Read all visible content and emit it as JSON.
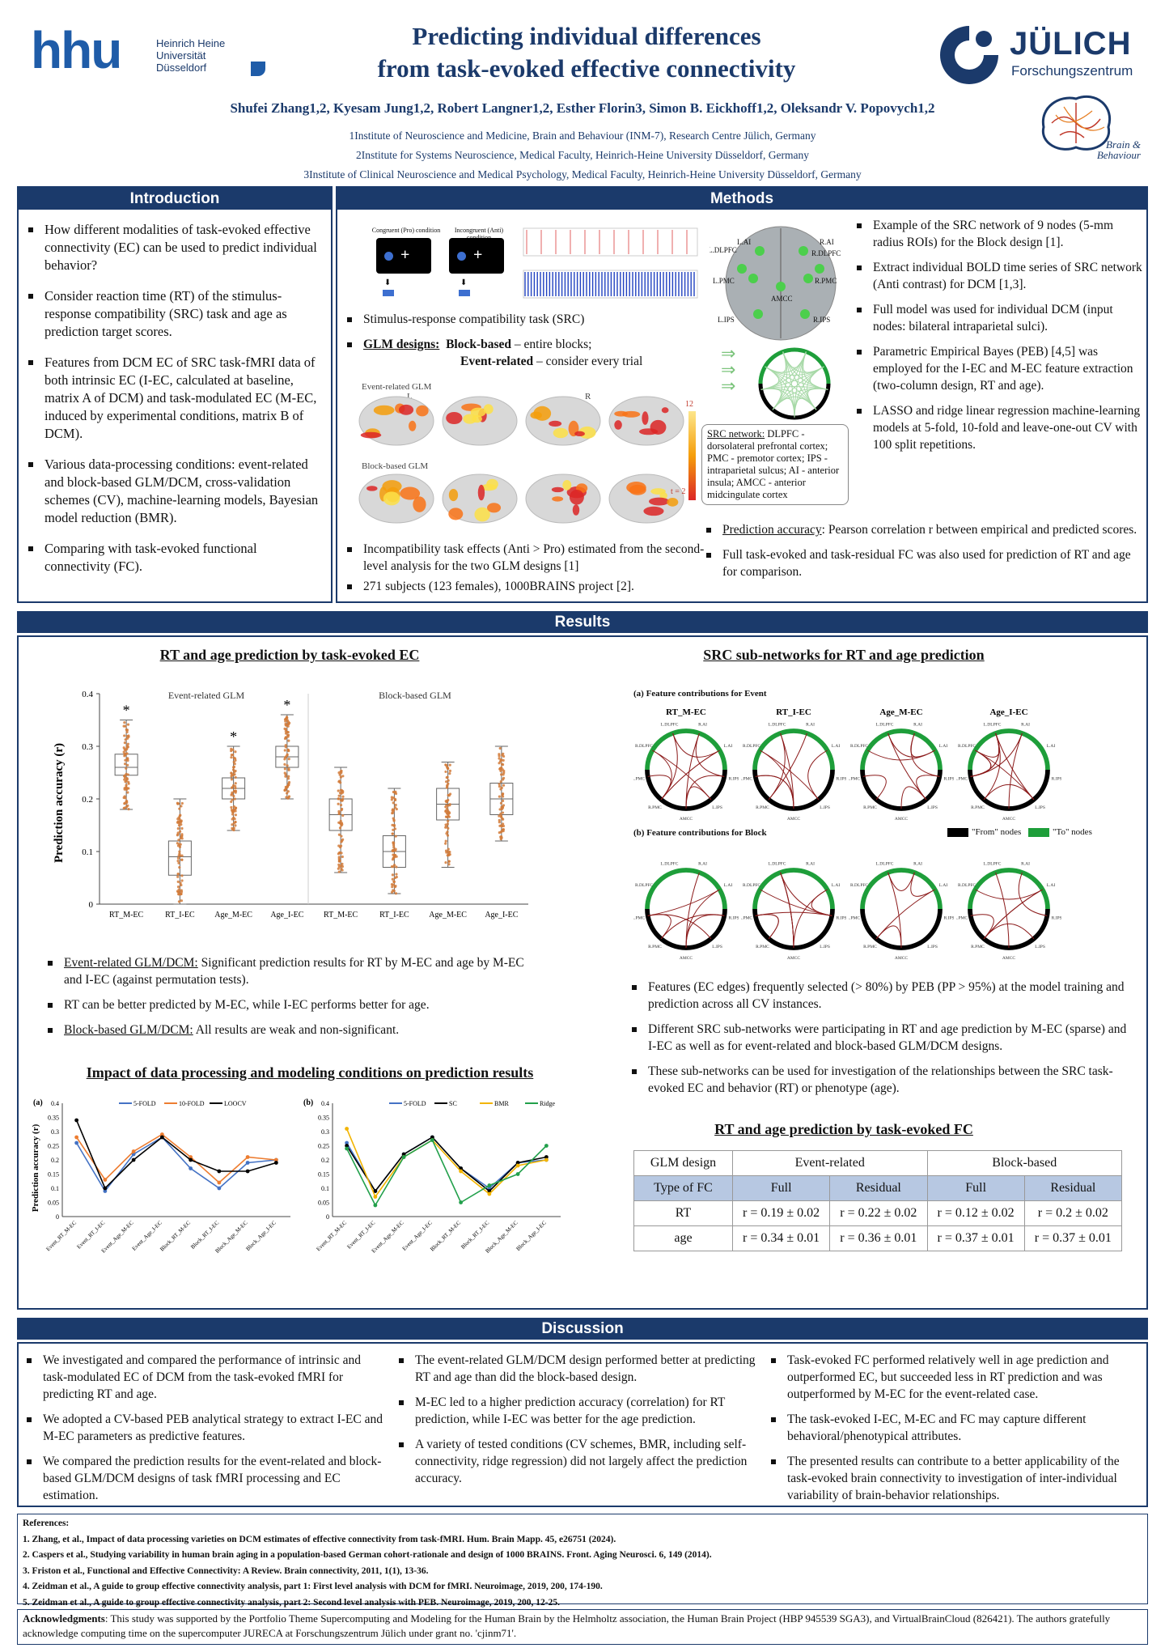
{
  "header": {
    "hhu_mark": "hhu",
    "hhu_name_lines": [
      "Heinrich Heine",
      "Universität",
      "Düsseldorf"
    ],
    "title_line1": "Predicting individual differences",
    "title_line2": "from task-evoked effective connectivity",
    "julich_name": "JÜLICH",
    "julich_sub": "Forschungszentrum",
    "bb_text1": "Brain &",
    "bb_text2": "Behaviour",
    "authors": "Shufei Zhang1,2, Kyesam Jung1,2, Robert Langner1,2, Esther Florin3, Simon B. Eickhoff1,2, Oleksandr V. Popovych1,2",
    "aff1": "1Institute of Neuroscience and Medicine, Brain and Behaviour (INM-7), Research Centre Jülich, Germany",
    "aff2": "2Institute for Systems Neuroscience, Medical Faculty, Heinrich-Heine University Düsseldorf, Germany",
    "aff3": "3Institute of Clinical Neuroscience and Medical Psychology, Medical Faculty, Heinrich-Heine University Düsseldorf, Germany"
  },
  "intro": {
    "heading": "Introduction",
    "items": [
      "How different modalities of task-evoked effective connectivity (EC) can be used to predict individual behavior?",
      "Consider reaction time (RT) of the stimulus-response compatibility (SRC) task and age as prediction target scores.",
      "Features from DCM EC of SRC task-fMRI data of both intrinsic EC (I-EC, calculated at baseline, matrix A of DCM) and task-modulated EC (M-EC, induced by experimental conditions, matrix B of DCM).",
      "Various data-processing conditions: event-related and block-based GLM/DCM, cross-validation schemes (CV), machine-learning models, Bayesian model reduction (BMR).",
      "Comparing with task-evoked functional connectivity (FC)."
    ]
  },
  "methods": {
    "heading": "Methods",
    "task_label_1": "Congruent (Pro) condition",
    "task_label_2": "Incongruent (Anti) condition",
    "src_bullet": "Stimulus-response compatibility task (SRC)",
    "glm_label": "GLM designs:",
    "glm_block": "Block-based",
    "glm_block_desc": "– entire blocks;",
    "glm_event": "Event-related",
    "glm_event_desc": "– consider every trial",
    "event_glm": "Event-related GLM",
    "block_glm": "Block-based GLM",
    "hemi_l": "L",
    "hemi_r": "R",
    "colorbar_max": "12",
    "colorbar_min": "t = 2",
    "effects_bullet": "Incompatibility task effects (Anti > Pro) estimated from the second-level analysis for the two GLM designs [1]",
    "subjects_bullet": "271 subjects (123 females), 1000BRAINS project [2].",
    "brain_labels": [
      "L.DLPFC",
      "R.DLPFC",
      "L.PMC",
      "R.PMC",
      "AMCC",
      "L.IPS",
      "R.IPS",
      "L.AI",
      "R.AI"
    ],
    "src_network_title": "SRC network:",
    "src_network_text": "DLPFC - dorsolateral prefrontal cortex; PMC - premotor cortex; IPS - intraparietal sulcus; AI - anterior insula; AMCC - anterior midcingulate cortex",
    "right_items": [
      "Example of the SRC network of 9 nodes (5-mm radius ROIs) for the Block design [1].",
      "Extract individual BOLD time series of SRC network (Anti contrast) for DCM [1,3].",
      "Full model was used for individual DCM (input nodes: bilateral intraparietal sulci).",
      "Parametric Empirical Bayes (PEB) [4,5] was employed for the I-EC and M-EC feature extraction (two-column design, RT and age).",
      "LASSO and ridge linear regression machine-learning models at 5-fold, 10-fold and leave-one-out CV with 100 split repetitions."
    ],
    "accuracy_label": "Prediction accuracy",
    "accuracy_text": ": Pearson correlation r between empirical and predicted scores.",
    "fc_item": "Full task-evoked and task-residual FC was also used for prediction of RT and age for comparison."
  },
  "results": {
    "heading": "Results",
    "box_title": "RT and age prediction by task-evoked EC",
    "box_ylabel": "Prediction accuracy (r)",
    "box_event": "Event-related GLM",
    "box_block": "Block-based GLM",
    "box_yticks": [
      "0",
      "0.1",
      "0.2",
      "0.3",
      "0.4"
    ],
    "box_star": "*",
    "box_categories": [
      "RT_M-EC",
      "RT_I-EC",
      "Age_M-EC",
      "Age_I-EC",
      "RT_M-EC",
      "RT_I-EC",
      "Age_M-EC",
      "Age_I-EC"
    ],
    "left_bullets": [
      {
        "u": "Event-related GLM/DCM:",
        "t": " Significant prediction results for RT by M-EC and age by M-EC and I-EC (against permutation tests)."
      },
      {
        "u": "",
        "t": "RT can be better predicted by M-EC, while I-EC performs better for age."
      },
      {
        "u": "Block-based GLM/DCM:",
        "t": " All results are weak and non-significant."
      }
    ],
    "impact_title": "Impact of data processing and modeling conditions on prediction results",
    "panel_a": "(a)",
    "panel_b": "(b)",
    "line_yticks": [
      "0",
      "0.05",
      "0.1",
      "0.15",
      "0.2",
      "0.25",
      "0.3",
      "0.35",
      "0.4"
    ],
    "line_categories": [
      "Event_RT_M-EC",
      "Event_RT_I-EC",
      "Event_Age_M-EC",
      "Event_Age_I-EC",
      "Block_RT_M-EC",
      "Block_RT_I-EC",
      "Block_Age_M-EC",
      "Block_Age_I-EC"
    ],
    "sub_title": "SRC sub-networks for RT and age prediction",
    "sub_a": "(a) Feature contributions for Event",
    "sub_b": "(b) Feature contributions for Block",
    "sub_cols": [
      "RT_M-EC",
      "RT_I-EC",
      "Age_M-EC",
      "Age_I-EC"
    ],
    "legend_from": "\"From\" nodes",
    "legend_to": "\"To\" nodes",
    "node_labels": [
      "L.DLPFC",
      "R.DLPFC",
      "L.PMC",
      "R.PMC",
      "AMCC",
      "L.IPS",
      "R.IPS",
      "L.AI",
      "R.AI"
    ],
    "right_bullets": [
      "Features (EC edges) frequently selected (> 80%) by PEB (PP > 95%) at the model training and prediction across all CV instances.",
      "Different SRC sub-networks were participating in RT and age prediction by M-EC (sparse) and I-EC as well as for event-related and block-based GLM/DCM designs.",
      "These sub-networks can be used for investigation of the relationships between the SRC task-evoked EC and behavior (RT) or phenotype (age)."
    ],
    "fc_title": "RT and age prediction by task-evoked FC",
    "fc_table": {
      "h1": [
        "GLM design",
        "Event-related",
        "Block-based"
      ],
      "h2": [
        "Type of FC",
        "Full",
        "Residual",
        "Full",
        "Residual"
      ],
      "rows": [
        [
          "RT",
          "r = 0.19 ± 0.02",
          "r = 0.22 ± 0.02",
          "r = 0.12 ± 0.02",
          "r = 0.2 ± 0.02"
        ],
        [
          "age",
          "r = 0.34 ± 0.01",
          "r = 0.36 ± 0.01",
          "r = 0.37 ± 0.01",
          "r = 0.37 ± 0.01"
        ]
      ]
    }
  },
  "chart_data": [
    {
      "type": "box",
      "title": "RT and age prediction by task-evoked EC",
      "ylabel": "Prediction accuracy (r)",
      "ylim": [
        0,
        0.4
      ],
      "categories": [
        "RT_M-EC",
        "RT_I-EC",
        "Age_M-EC",
        "Age_I-EC",
        "RT_M-EC",
        "RT_I-EC",
        "Age_M-EC",
        "Age_I-EC"
      ],
      "groups": [
        "Event-related GLM",
        "Event-related GLM",
        "Event-related GLM",
        "Event-related GLM",
        "Block-based GLM",
        "Block-based GLM",
        "Block-based GLM",
        "Block-based GLM"
      ],
      "median": [
        0.26,
        0.09,
        0.22,
        0.28,
        0.17,
        0.1,
        0.19,
        0.2
      ],
      "q1": [
        0.245,
        0.055,
        0.2,
        0.26,
        0.14,
        0.07,
        0.16,
        0.17
      ],
      "q3": [
        0.285,
        0.12,
        0.24,
        0.3,
        0.2,
        0.13,
        0.22,
        0.23
      ],
      "whisker_low": [
        0.18,
        0.0,
        0.14,
        0.2,
        0.06,
        0.02,
        0.07,
        0.12
      ],
      "whisker_high": [
        0.35,
        0.2,
        0.3,
        0.36,
        0.26,
        0.22,
        0.27,
        0.3
      ],
      "significant": [
        true,
        false,
        true,
        true,
        false,
        false,
        false,
        false
      ]
    },
    {
      "type": "line",
      "panel": "(a)",
      "ylabel": "Prediction accuracy (r)",
      "ylim": [
        0,
        0.4
      ],
      "categories": [
        "Event_RT_M-EC",
        "Event_RT_I-EC",
        "Event_Age_M-EC",
        "Event_Age_I-EC",
        "Block_RT_M-EC",
        "Block_RT_I-EC",
        "Block_Age_M-EC",
        "Block_Age_I-EC"
      ],
      "series": [
        {
          "name": "5-FOLD",
          "color": "#4472c4",
          "values": [
            0.26,
            0.09,
            0.22,
            0.28,
            0.17,
            0.1,
            0.19,
            0.2
          ]
        },
        {
          "name": "10-FOLD",
          "color": "#ed7d31",
          "values": [
            0.28,
            0.13,
            0.23,
            0.29,
            0.21,
            0.12,
            0.21,
            0.2
          ]
        },
        {
          "name": "LOOCV",
          "color": "#000000",
          "values": [
            0.34,
            0.1,
            0.2,
            0.28,
            0.2,
            0.16,
            0.16,
            0.19
          ]
        }
      ]
    },
    {
      "type": "line",
      "panel": "(b)",
      "ylim": [
        0,
        0.4
      ],
      "categories": [
        "Event_RT_M-EC",
        "Event_RT_I-EC",
        "Event_Age_M-EC",
        "Event_Age_I-EC",
        "Block_RT_M-EC",
        "Block_RT_I-EC",
        "Block_Age_M-EC",
        "Block_Age_I-EC"
      ],
      "series": [
        {
          "name": "5-FOLD",
          "color": "#4472c4",
          "values": [
            0.26,
            0.09,
            0.22,
            0.28,
            0.17,
            0.1,
            0.19,
            0.2
          ]
        },
        {
          "name": "SC",
          "color": "#000000",
          "values": [
            0.25,
            0.09,
            0.22,
            0.28,
            0.17,
            0.09,
            0.19,
            0.21
          ]
        },
        {
          "name": "BMR",
          "color": "#f2b400",
          "values": [
            0.31,
            0.07,
            0.21,
            0.27,
            0.16,
            0.08,
            0.18,
            0.2
          ]
        },
        {
          "name": "Ridge",
          "color": "#22a04b",
          "values": [
            0.24,
            0.04,
            0.21,
            0.27,
            0.05,
            0.11,
            0.15,
            0.25
          ]
        }
      ]
    }
  ],
  "discussion": {
    "heading": "Discussion",
    "col1": [
      "We investigated and compared the performance of intrinsic and task-modulated EC of DCM from the task-evoked fMRI for predicting RT and age.",
      "We adopted a CV-based PEB analytical strategy to extract I-EC and M-EC parameters as predictive features.",
      "We compared the prediction results for the event-related and block-based GLM/DCM designs of task fMRI processing and EC estimation."
    ],
    "col2": [
      "The event-related GLM/DCM design performed better at predicting RT and age than did the block-based design.",
      "M-EC led to a higher prediction accuracy (correlation) for RT prediction, while I-EC was better for the age prediction.",
      "A variety of tested conditions (CV schemes, BMR, including self-connectivity, ridge regression) did not largely affect the prediction accuracy."
    ],
    "col3": [
      "Task-evoked FC performed relatively well in age prediction and outperformed EC, but succeeded less in RT prediction and was outperformed by M-EC for the event-related case.",
      "The task-evoked I-EC, M-EC and FC may capture different behavioral/phenotypical attributes.",
      "The presented results can contribute to a better applicability of the task-evoked brain connectivity to investigation of inter-individual variability of brain-behavior relationships."
    ]
  },
  "references": {
    "heading": "References:",
    "items": [
      "1.  Zhang, et al., Impact of data processing varieties on DCM estimates of effective connectivity from task-fMRI. Hum. Brain Mapp. 45, e26751 (2024).",
      "2.  Caspers et al., Studying variability in human brain aging in a population-based German cohort-rationale and design of 1000 BRAINS. Front. Aging Neurosci. 6, 149 (2014).",
      "3.  Friston et al., Functional and Effective Connectivity: A Review. Brain connectivity, 2011, 1(1), 13-36.",
      "4.  Zeidman et al., A guide to group effective connectivity analysis, part 1: First level analysis with DCM for fMRI. Neuroimage, 2019, 200, 174-190.",
      "5.  Zeidman et al., A guide to group effective connectivity analysis, part 2: Second level analysis with PEB. Neuroimage, 2019, 200, 12-25."
    ]
  },
  "ack": {
    "label": "Acknowledgments",
    "text": ": This study was supported by the Portfolio Theme Supercomputing and Modeling for the Human Brain by the Helmholtz association, the Human Brain Project (HBP 945539 SGA3), and VirtualBrainCloud (826421). The authors gratefully acknowledge computing time on the supercomputer JURECA at Forschungszentrum Jülich under grant no. 'cjinm71'."
  },
  "colors": {
    "navy": "#1b3a6b",
    "hhu_blue": "#1f5ca8",
    "table_header": "#b7c8e2",
    "from_node": "#000000",
    "to_node": "#1e9e3a",
    "edge": "#8b1a1a"
  }
}
